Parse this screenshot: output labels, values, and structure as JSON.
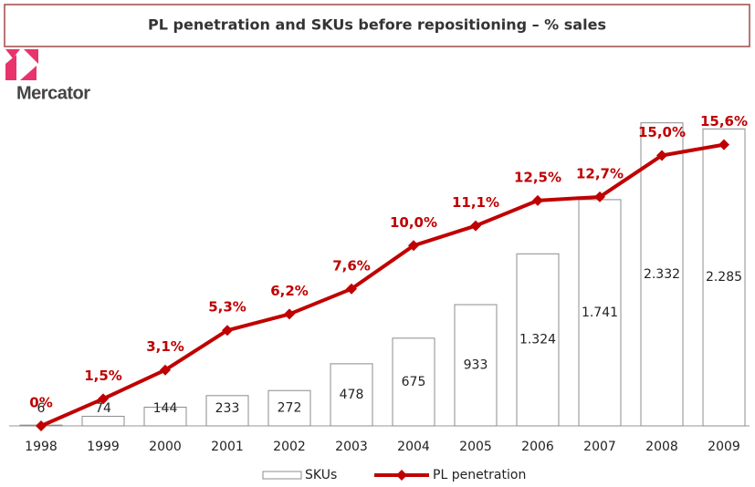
{
  "logo": "Mercator",
  "chart_data": {
    "type": "bar-line",
    "title": "PL penetration and SKUs before repositioning – % sales",
    "categories": [
      "1998",
      "1999",
      "2000",
      "2001",
      "2002",
      "2003",
      "2004",
      "2005",
      "2006",
      "2007",
      "2008",
      "2009"
    ],
    "series": [
      {
        "name": "SKUs",
        "type": "bar",
        "color": "#ffffff",
        "edge_color": "#8c8c8c",
        "values": [
          6,
          74,
          144,
          233,
          272,
          478,
          675,
          933,
          1324,
          1741,
          2332,
          2285
        ],
        "value_labels": [
          "6",
          "74",
          "144",
          "233",
          "272",
          "478",
          "675",
          "933",
          "1.324",
          "1.741",
          "2.332",
          "2.285"
        ]
      },
      {
        "name": "PL penetration",
        "type": "line",
        "axis": "y2",
        "color": "#c00000",
        "values": [
          0,
          1.5,
          3.1,
          5.3,
          6.2,
          7.6,
          10.0,
          11.1,
          12.5,
          12.7,
          15.0,
          15.6
        ],
        "value_labels": [
          "0%",
          "1,5%",
          "3,1%",
          "5,3%",
          "6,2%",
          "7,6%",
          "10,0%",
          "11,1%",
          "12,5%",
          "12,7%",
          "15,0%",
          "15,6%"
        ]
      }
    ],
    "ylim": [
      0,
      2400
    ],
    "y2lim": [
      0,
      17.3
    ],
    "legend": "bottom"
  }
}
